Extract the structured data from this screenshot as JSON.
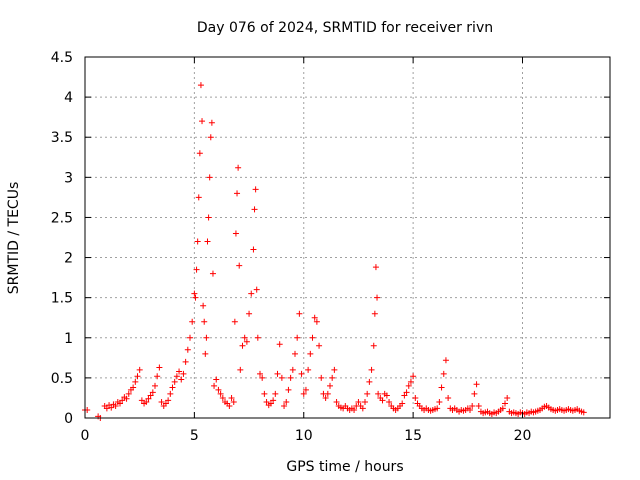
{
  "chart_data": {
    "type": "scatter",
    "title": "Day 076 of 2024, SRMTID for receiver rivn",
    "xlabel": "GPS time / hours",
    "ylabel": "SRMTID / TECUs",
    "xlim": [
      0,
      24
    ],
    "ylim": [
      0,
      4.5
    ],
    "xticks": [
      "0",
      "5",
      "10",
      "15",
      "20"
    ],
    "xtick_values": [
      0,
      5,
      10,
      15,
      20
    ],
    "yticks": [
      "0",
      "0.5",
      "1",
      "1.5",
      "2",
      "2.5",
      "3",
      "3.5",
      "4",
      "4.5"
    ],
    "ytick_values": [
      0,
      0.5,
      1,
      1.5,
      2,
      2.5,
      3,
      3.5,
      4,
      4.5
    ],
    "grid": true,
    "marker": "+",
    "color": "#ff0000",
    "series": [
      {
        "name": "SRMTID",
        "points": [
          [
            0.0,
            0.1
          ],
          [
            0.1,
            0.1
          ],
          [
            0.6,
            0.02
          ],
          [
            0.7,
            0.0
          ],
          [
            0.9,
            0.15
          ],
          [
            1.0,
            0.12
          ],
          [
            1.1,
            0.16
          ],
          [
            1.2,
            0.13
          ],
          [
            1.3,
            0.17
          ],
          [
            1.4,
            0.15
          ],
          [
            1.5,
            0.2
          ],
          [
            1.6,
            0.18
          ],
          [
            1.7,
            0.22
          ],
          [
            1.8,
            0.26
          ],
          [
            1.9,
            0.24
          ],
          [
            2.0,
            0.3
          ],
          [
            2.1,
            0.35
          ],
          [
            2.2,
            0.38
          ],
          [
            2.3,
            0.45
          ],
          [
            2.4,
            0.52
          ],
          [
            2.5,
            0.6
          ],
          [
            2.6,
            0.22
          ],
          [
            2.7,
            0.18
          ],
          [
            2.8,
            0.2
          ],
          [
            2.9,
            0.24
          ],
          [
            3.0,
            0.28
          ],
          [
            3.1,
            0.32
          ],
          [
            3.2,
            0.4
          ],
          [
            3.3,
            0.52
          ],
          [
            3.4,
            0.63
          ],
          [
            3.5,
            0.2
          ],
          [
            3.6,
            0.15
          ],
          [
            3.7,
            0.18
          ],
          [
            3.8,
            0.22
          ],
          [
            3.9,
            0.3
          ],
          [
            4.0,
            0.38
          ],
          [
            4.1,
            0.45
          ],
          [
            4.2,
            0.52
          ],
          [
            4.3,
            0.58
          ],
          [
            4.4,
            0.48
          ],
          [
            4.5,
            0.55
          ],
          [
            4.6,
            0.7
          ],
          [
            4.7,
            0.85
          ],
          [
            4.8,
            1.0
          ],
          [
            4.9,
            1.2
          ],
          [
            5.0,
            1.55
          ],
          [
            5.05,
            1.5
          ],
          [
            5.1,
            1.85
          ],
          [
            5.15,
            2.2
          ],
          [
            5.2,
            2.75
          ],
          [
            5.25,
            3.3
          ],
          [
            5.3,
            4.15
          ],
          [
            5.35,
            3.7
          ],
          [
            5.4,
            1.4
          ],
          [
            5.45,
            1.2
          ],
          [
            5.5,
            0.8
          ],
          [
            5.55,
            1.0
          ],
          [
            5.6,
            2.2
          ],
          [
            5.65,
            2.5
          ],
          [
            5.7,
            3.0
          ],
          [
            5.75,
            3.5
          ],
          [
            5.8,
            3.68
          ],
          [
            5.85,
            1.8
          ],
          [
            5.9,
            0.4
          ],
          [
            6.0,
            0.48
          ],
          [
            6.1,
            0.35
          ],
          [
            6.2,
            0.3
          ],
          [
            6.3,
            0.25
          ],
          [
            6.4,
            0.2
          ],
          [
            6.5,
            0.18
          ],
          [
            6.6,
            0.15
          ],
          [
            6.7,
            0.25
          ],
          [
            6.8,
            0.2
          ],
          [
            6.85,
            1.2
          ],
          [
            6.9,
            2.3
          ],
          [
            6.95,
            2.8
          ],
          [
            7.0,
            3.12
          ],
          [
            7.05,
            1.9
          ],
          [
            7.1,
            0.6
          ],
          [
            7.2,
            0.9
          ],
          [
            7.3,
            1.0
          ],
          [
            7.4,
            0.95
          ],
          [
            7.5,
            1.3
          ],
          [
            7.6,
            1.55
          ],
          [
            7.7,
            2.1
          ],
          [
            7.75,
            2.6
          ],
          [
            7.8,
            2.85
          ],
          [
            7.85,
            1.6
          ],
          [
            7.9,
            1.0
          ],
          [
            8.0,
            0.55
          ],
          [
            8.1,
            0.5
          ],
          [
            8.2,
            0.3
          ],
          [
            8.3,
            0.2
          ],
          [
            8.4,
            0.16
          ],
          [
            8.5,
            0.18
          ],
          [
            8.6,
            0.22
          ],
          [
            8.7,
            0.3
          ],
          [
            8.8,
            0.55
          ],
          [
            8.9,
            0.92
          ],
          [
            9.0,
            0.5
          ],
          [
            9.1,
            0.15
          ],
          [
            9.2,
            0.2
          ],
          [
            9.3,
            0.35
          ],
          [
            9.4,
            0.5
          ],
          [
            9.5,
            0.6
          ],
          [
            9.6,
            0.8
          ],
          [
            9.7,
            1.0
          ],
          [
            9.8,
            1.3
          ],
          [
            9.9,
            0.55
          ],
          [
            10.0,
            0.3
          ],
          [
            10.1,
            0.35
          ],
          [
            10.2,
            0.6
          ],
          [
            10.3,
            0.8
          ],
          [
            10.4,
            1.0
          ],
          [
            10.5,
            1.25
          ],
          [
            10.6,
            1.2
          ],
          [
            10.7,
            0.9
          ],
          [
            10.8,
            0.5
          ],
          [
            10.9,
            0.3
          ],
          [
            11.0,
            0.25
          ],
          [
            11.1,
            0.3
          ],
          [
            11.2,
            0.4
          ],
          [
            11.3,
            0.5
          ],
          [
            11.4,
            0.6
          ],
          [
            11.5,
            0.2
          ],
          [
            11.6,
            0.15
          ],
          [
            11.7,
            0.13
          ],
          [
            11.8,
            0.12
          ],
          [
            11.9,
            0.15
          ],
          [
            12.0,
            0.12
          ],
          [
            12.1,
            0.1
          ],
          [
            12.2,
            0.12
          ],
          [
            12.3,
            0.1
          ],
          [
            12.4,
            0.15
          ],
          [
            12.5,
            0.2
          ],
          [
            12.6,
            0.15
          ],
          [
            12.7,
            0.12
          ],
          [
            12.8,
            0.2
          ],
          [
            12.9,
            0.3
          ],
          [
            13.0,
            0.45
          ],
          [
            13.1,
            0.6
          ],
          [
            13.2,
            0.9
          ],
          [
            13.25,
            1.3
          ],
          [
            13.3,
            1.88
          ],
          [
            13.35,
            1.5
          ],
          [
            13.4,
            0.3
          ],
          [
            13.5,
            0.25
          ],
          [
            13.6,
            0.22
          ],
          [
            13.7,
            0.3
          ],
          [
            13.8,
            0.28
          ],
          [
            13.9,
            0.2
          ],
          [
            14.0,
            0.15
          ],
          [
            14.1,
            0.12
          ],
          [
            14.2,
            0.1
          ],
          [
            14.3,
            0.12
          ],
          [
            14.4,
            0.15
          ],
          [
            14.5,
            0.18
          ],
          [
            14.6,
            0.28
          ],
          [
            14.7,
            0.32
          ],
          [
            14.8,
            0.4
          ],
          [
            14.9,
            0.45
          ],
          [
            15.0,
            0.52
          ],
          [
            15.1,
            0.25
          ],
          [
            15.2,
            0.18
          ],
          [
            15.3,
            0.15
          ],
          [
            15.4,
            0.12
          ],
          [
            15.5,
            0.1
          ],
          [
            15.6,
            0.12
          ],
          [
            15.7,
            0.1
          ],
          [
            15.8,
            0.09
          ],
          [
            15.9,
            0.1
          ],
          [
            16.0,
            0.11
          ],
          [
            16.1,
            0.12
          ],
          [
            16.2,
            0.2
          ],
          [
            16.3,
            0.38
          ],
          [
            16.4,
            0.55
          ],
          [
            16.5,
            0.72
          ],
          [
            16.6,
            0.25
          ],
          [
            16.7,
            0.12
          ],
          [
            16.8,
            0.1
          ],
          [
            16.9,
            0.12
          ],
          [
            17.0,
            0.1
          ],
          [
            17.1,
            0.08
          ],
          [
            17.2,
            0.1
          ],
          [
            17.3,
            0.09
          ],
          [
            17.4,
            0.1
          ],
          [
            17.5,
            0.12
          ],
          [
            17.6,
            0.1
          ],
          [
            17.7,
            0.15
          ],
          [
            17.8,
            0.3
          ],
          [
            17.9,
            0.42
          ],
          [
            18.0,
            0.15
          ],
          [
            18.1,
            0.08
          ],
          [
            18.2,
            0.06
          ],
          [
            18.3,
            0.07
          ],
          [
            18.4,
            0.08
          ],
          [
            18.5,
            0.06
          ],
          [
            18.6,
            0.05
          ],
          [
            18.7,
            0.07
          ],
          [
            18.8,
            0.06
          ],
          [
            18.9,
            0.08
          ],
          [
            19.0,
            0.1
          ],
          [
            19.1,
            0.12
          ],
          [
            19.2,
            0.18
          ],
          [
            19.3,
            0.25
          ],
          [
            19.4,
            0.08
          ],
          [
            19.5,
            0.06
          ],
          [
            19.6,
            0.07
          ],
          [
            19.7,
            0.06
          ],
          [
            19.8,
            0.05
          ],
          [
            19.9,
            0.07
          ],
          [
            20.0,
            0.06
          ],
          [
            20.1,
            0.05
          ],
          [
            20.2,
            0.07
          ],
          [
            20.3,
            0.06
          ],
          [
            20.4,
            0.08
          ],
          [
            20.5,
            0.07
          ],
          [
            20.6,
            0.08
          ],
          [
            20.7,
            0.09
          ],
          [
            20.8,
            0.1
          ],
          [
            20.9,
            0.12
          ],
          [
            21.0,
            0.14
          ],
          [
            21.1,
            0.15
          ],
          [
            21.2,
            0.13
          ],
          [
            21.3,
            0.11
          ],
          [
            21.4,
            0.1
          ],
          [
            21.5,
            0.09
          ],
          [
            21.6,
            0.1
          ],
          [
            21.7,
            0.11
          ],
          [
            21.8,
            0.1
          ],
          [
            21.9,
            0.09
          ],
          [
            22.0,
            0.1
          ],
          [
            22.1,
            0.11
          ],
          [
            22.2,
            0.1
          ],
          [
            22.3,
            0.09
          ],
          [
            22.4,
            0.1
          ],
          [
            22.5,
            0.11
          ],
          [
            22.6,
            0.09
          ],
          [
            22.7,
            0.08
          ],
          [
            22.8,
            0.07
          ]
        ]
      }
    ]
  }
}
